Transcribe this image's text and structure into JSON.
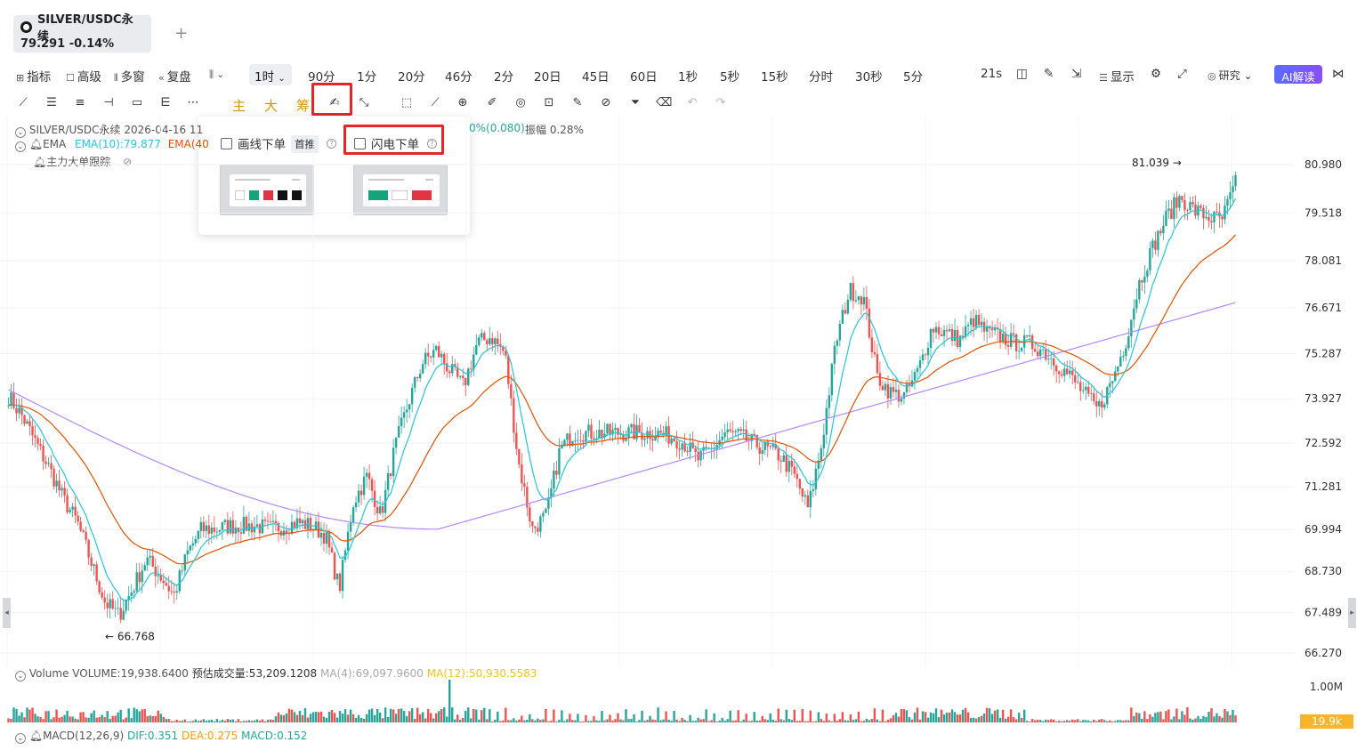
{
  "symbol_tab": {
    "name": "SILVER/USDC永续",
    "price": "79.291",
    "change": "-0.14%"
  },
  "toolbar1": {
    "indicator": "指标",
    "advanced": "高级",
    "multi_window": "多窗",
    "replay": "复盘",
    "timeframe": "1时",
    "tf_list": [
      "90分",
      "1分",
      "20分",
      "46分",
      "2分",
      "20日",
      "45日",
      "60日",
      "1秒",
      "5秒",
      "15秒",
      "分时",
      "30秒",
      "5分"
    ],
    "countdown": "21s",
    "display": "显示",
    "research": "研究",
    "ai_read": "AI解读"
  },
  "toolbar2": {
    "main": "主",
    "big": "大",
    "chip": "筹"
  },
  "popup": {
    "draw_order_label": "画线下单",
    "first_push": "首推",
    "flash_order_label": "闪电下单"
  },
  "legend": {
    "symbol": "SILVER/USDC永续",
    "date": "2026-04-16 11",
    "change_tail": "0%(0.080)",
    "amplitude": "振幅 0.28%",
    "ema_label": "EMA",
    "ema10": "EMA(10):79.877",
    "ema40": "EMA(40",
    "whale": "主力大单跟踪"
  },
  "volume_legend": {
    "label": "Volume",
    "volume": "VOLUME:19,938.6400",
    "estimated": "预估成交量:53,209.1208",
    "ma4": "MA(4):69,097.9600",
    "ma12": "MA(12):50,930.5583"
  },
  "macd_legend": {
    "label": "MACD(12,26,9)",
    "dif": "DIF:0.351",
    "dea": "DEA:0.275",
    "macd": "MACD:0.152"
  },
  "volume_axis": {
    "top": "1.00M",
    "current": "19.9k"
  },
  "price_markers": {
    "high": "81.039",
    "low": "66.768"
  },
  "colors": {
    "up": "#26a69a",
    "down": "#ef5350",
    "ema10": "#26c6da",
    "ema40": "#e65100",
    "ema200": "#b388ff",
    "highlight": "#e5252a"
  },
  "chart_data": {
    "type": "candlestick",
    "y_ticks": [
      "80.980",
      "79.518",
      "78.081",
      "76.671",
      "75.287",
      "73.927",
      "72.592",
      "71.281",
      "69.994",
      "68.730",
      "67.489",
      "66.270"
    ],
    "ylim": [
      66.27,
      80.98
    ],
    "close_path": [
      74.0,
      73.4,
      72.6,
      71.8,
      70.9,
      70.2,
      69.0,
      67.8,
      67.4,
      68.2,
      69.1,
      68.6,
      68.0,
      69.3,
      70.0,
      70.0,
      70.1,
      70.1,
      70.1,
      70.0,
      70.1,
      70.2,
      70.1,
      69.8,
      68.2,
      70.8,
      71.6,
      70.4,
      72.4,
      73.8,
      75.0,
      75.4,
      74.8,
      74.3,
      75.6,
      75.8,
      75.3,
      72.0,
      70.0,
      70.4,
      72.4,
      72.9,
      72.9,
      72.9,
      72.9,
      72.9,
      72.9,
      72.9,
      72.8,
      72.6,
      72.1,
      72.4,
      72.9,
      72.8,
      72.6,
      72.4,
      72.2,
      71.6,
      70.6,
      72.6,
      75.6,
      77.2,
      77.0,
      74.6,
      74.1,
      74.0,
      74.8,
      76.1,
      75.9,
      75.7,
      76.3,
      75.9,
      75.8,
      75.6,
      75.6,
      75.4,
      75.0,
      74.6,
      74.1,
      73.6,
      74.4,
      75.6,
      77.4,
      78.5,
      79.4,
      80.0,
      79.6,
      79.4,
      79.3,
      80.4
    ]
  }
}
